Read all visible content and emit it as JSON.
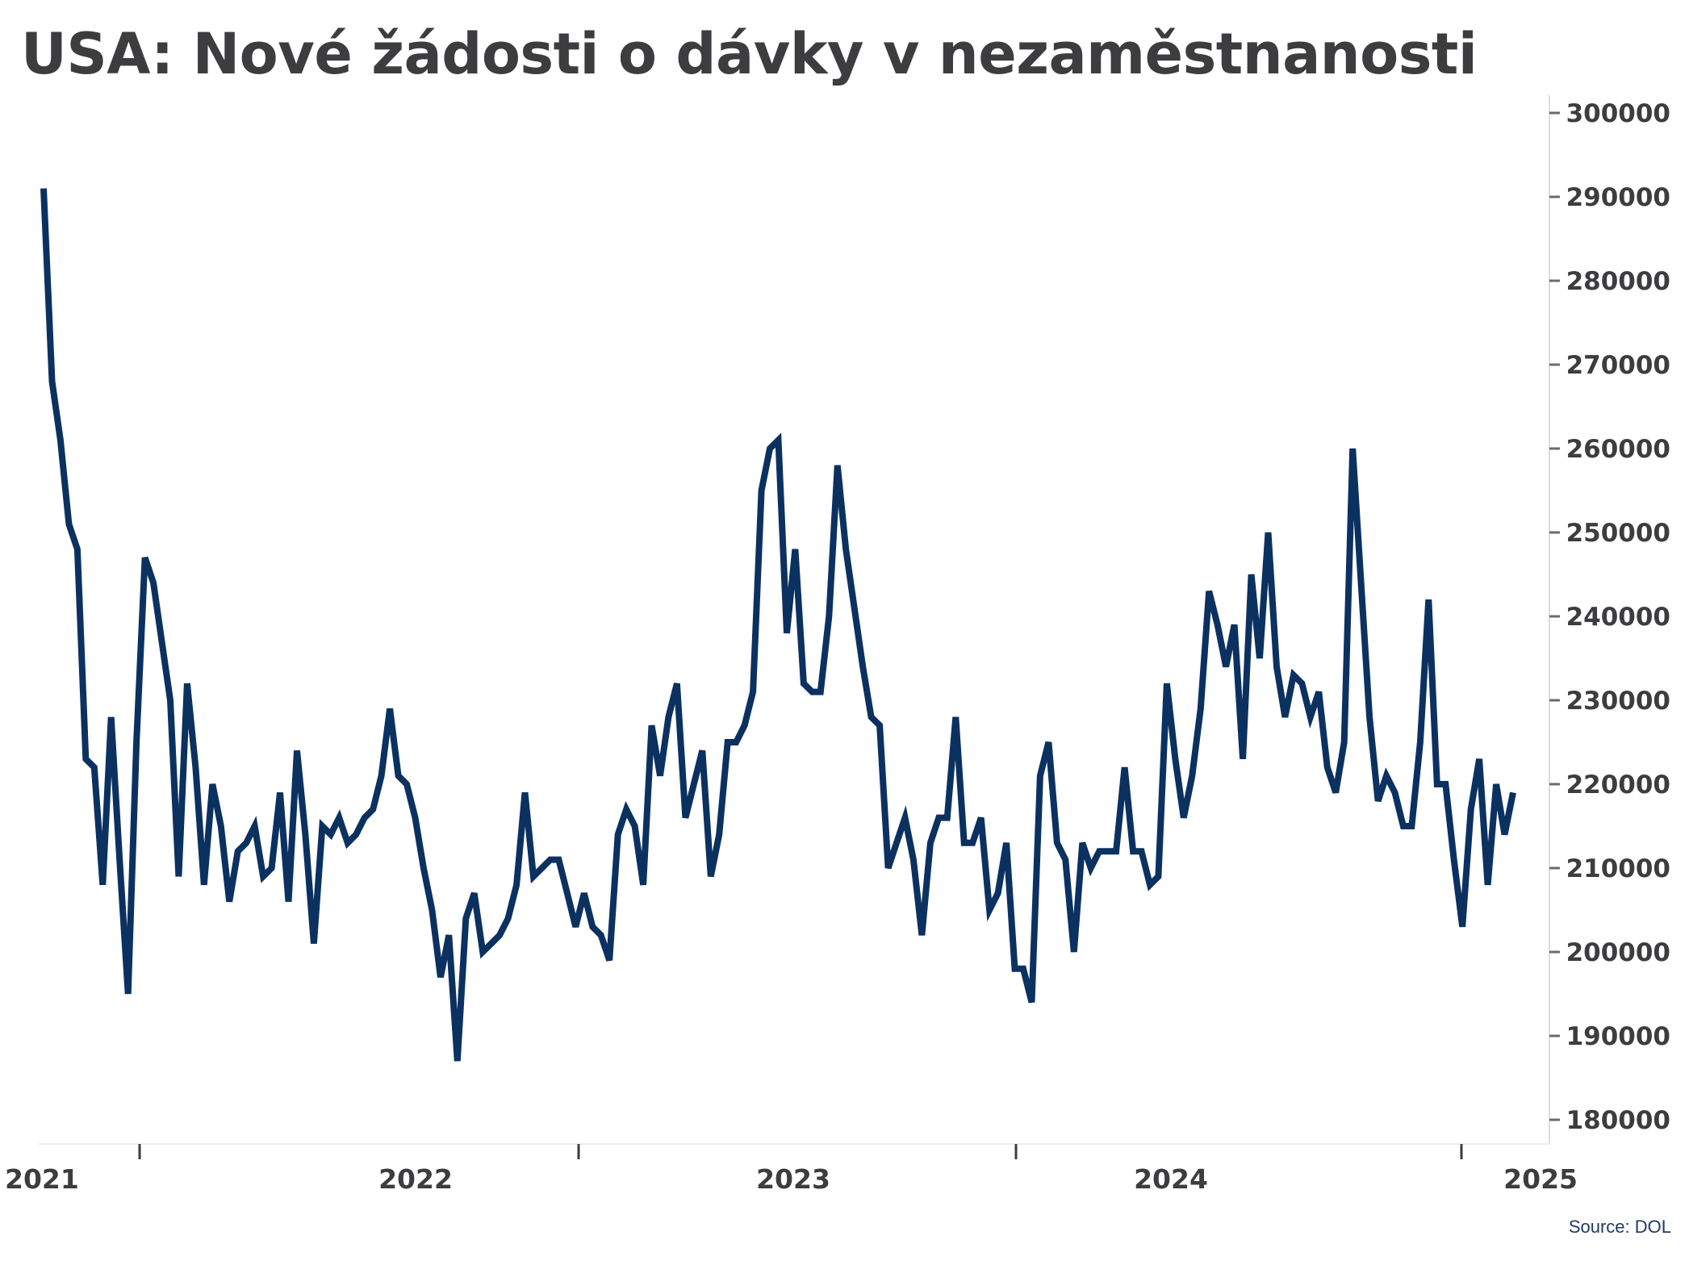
{
  "title": "USA: Nové žádosti o dávky v nezaměstnanosti",
  "source": "Source: DOL",
  "colors": {
    "line": "#0b3160",
    "text": "#3d3d3f",
    "axis": "#dddddd"
  },
  "chart_data": {
    "type": "line",
    "title": "USA: Nové žádosti o dávky v nezaměstnanosti",
    "xlabel": "",
    "ylabel": "",
    "y_axis_position": "right",
    "ylim": [
      180000,
      300000
    ],
    "yticks": [
      180000,
      190000,
      200000,
      210000,
      220000,
      230000,
      240000,
      250000,
      260000,
      270000,
      280000,
      290000,
      300000
    ],
    "xlim": [
      "2021",
      "2025"
    ],
    "xticks": [
      "2021",
      "2022",
      "2023",
      "2024",
      "2025"
    ],
    "grid": false,
    "legend": "none",
    "series": [
      {
        "values": [
          291000,
          268000,
          261000,
          251000,
          248000,
          223000,
          222000,
          208000,
          228000,
          211000,
          195000,
          225000,
          247000,
          244000,
          237000,
          230000,
          209000,
          232000,
          222000,
          208000,
          220000,
          215000,
          206000,
          212000,
          213000,
          215000,
          209000,
          210000,
          219000,
          206000,
          224000,
          214000,
          201000,
          215000,
          214000,
          216000,
          213000,
          214000,
          216000,
          217000,
          221000,
          229000,
          221000,
          220000,
          216000,
          210000,
          205000,
          197000,
          202000,
          187000,
          204000,
          207000,
          200000,
          201000,
          202000,
          204000,
          208000,
          219000,
          209000,
          210000,
          211000,
          211000,
          207000,
          203000,
          207000,
          203000,
          202000,
          199000,
          214000,
          217000,
          215000,
          208000,
          227000,
          221000,
          228000,
          232000,
          216000,
          220000,
          224000,
          209000,
          214000,
          225000,
          225000,
          227000,
          231000,
          255000,
          260000,
          261000,
          238000,
          248000,
          232000,
          231000,
          231000,
          240000,
          258000,
          248000,
          241000,
          234000,
          228000,
          227000,
          210000,
          213000,
          216000,
          211000,
          202000,
          213000,
          216000,
          216000,
          228000,
          213000,
          213000,
          216000,
          205000,
          207000,
          213000,
          198000,
          198000,
          194000,
          221000,
          225000,
          213000,
          211000,
          200000,
          213000,
          210000,
          212000,
          212000,
          212000,
          222000,
          212000,
          212000,
          208000,
          209000,
          232000,
          223000,
          216000,
          221000,
          229000,
          243000,
          239000,
          234000,
          239000,
          223000,
          245000,
          235000,
          250000,
          234000,
          228000,
          233000,
          232000,
          228000,
          231000,
          222000,
          219000,
          225000,
          260000,
          244000,
          228000,
          218000,
          221000,
          219000,
          215000,
          215000,
          225000,
          242000,
          220000,
          220000,
          211000,
          203000,
          217000,
          223000,
          208000,
          220000,
          214000,
          219000
        ]
      }
    ]
  }
}
